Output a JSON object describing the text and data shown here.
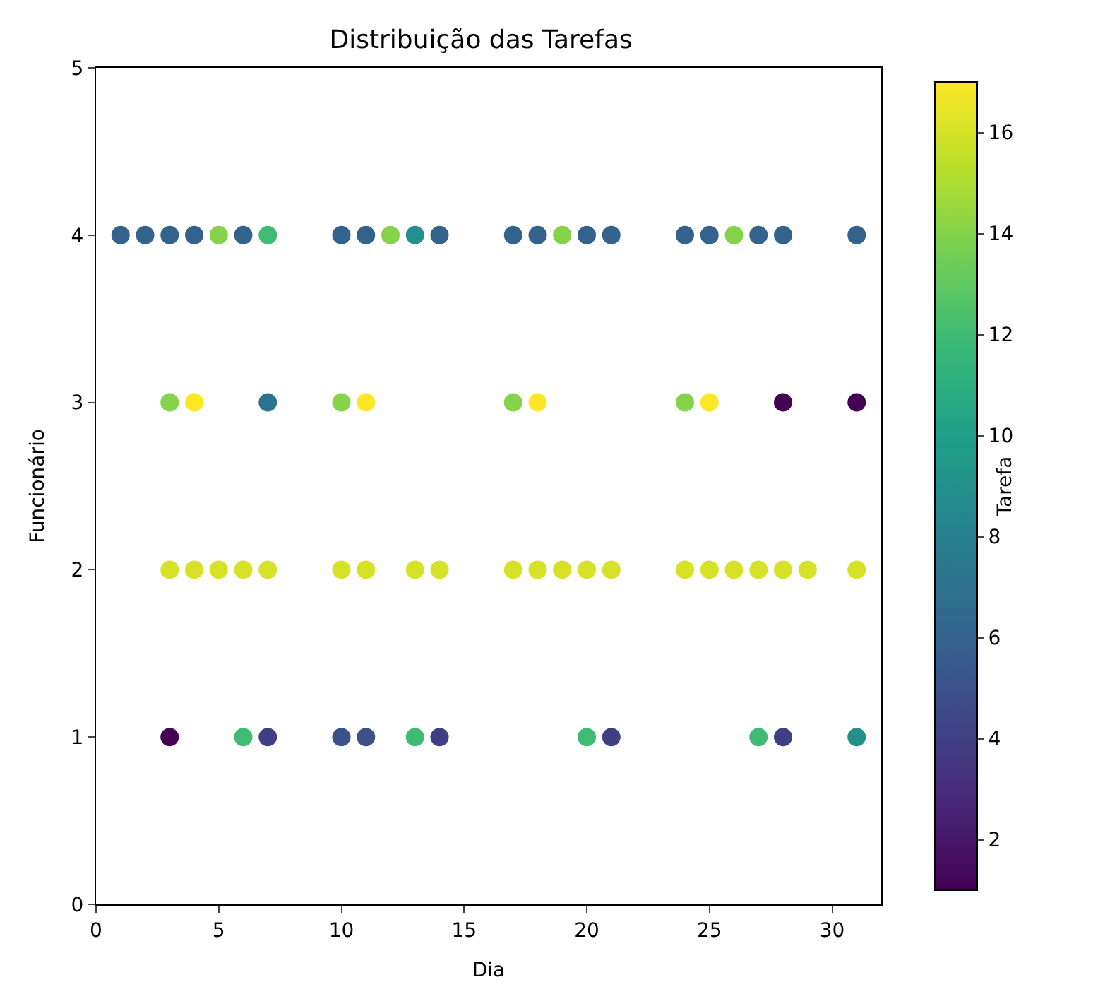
{
  "chart_data": {
    "type": "scatter",
    "title": "Distribuição das Tarefas",
    "xlabel": "Dia",
    "ylabel": "Funcionário",
    "clabel": "Tarefa",
    "x": [
      1,
      2,
      3,
      4,
      5,
      6,
      7,
      10,
      11,
      12,
      13,
      14,
      17,
      18,
      19,
      20,
      21,
      24,
      25,
      26,
      27,
      28,
      31,
      3,
      4,
      7,
      10,
      11,
      17,
      18,
      24,
      25,
      28,
      31,
      3,
      4,
      5,
      6,
      7,
      10,
      11,
      13,
      14,
      17,
      18,
      19,
      20,
      21,
      24,
      25,
      26,
      27,
      28,
      29,
      31,
      3,
      6,
      7,
      10,
      11,
      13,
      14,
      20,
      21,
      27,
      28,
      31
    ],
    "values": [
      4,
      4,
      4,
      4,
      4,
      4,
      4,
      4,
      4,
      4,
      4,
      4,
      4,
      4,
      4,
      4,
      4,
      4,
      4,
      4,
      4,
      4,
      4,
      3,
      3,
      3,
      3,
      3,
      3,
      3,
      3,
      3,
      3,
      3,
      2,
      2,
      2,
      2,
      2,
      2,
      2,
      2,
      2,
      2,
      2,
      2,
      2,
      2,
      2,
      2,
      2,
      2,
      2,
      2,
      2,
      1,
      1,
      1,
      1,
      1,
      1,
      1,
      1,
      1,
      1,
      1,
      1
    ],
    "cvalues": [
      6,
      6,
      6,
      6,
      14,
      6,
      12,
      6,
      6,
      14,
      9,
      6,
      6,
      6,
      14,
      6,
      6,
      6,
      6,
      14,
      6,
      6,
      6,
      14,
      17,
      7,
      14,
      17,
      14,
      17,
      14,
      17,
      1,
      1,
      16,
      16,
      16,
      16,
      16,
      16,
      16,
      16,
      16,
      16,
      16,
      16,
      16,
      16,
      16,
      16,
      16,
      16,
      16,
      16,
      16,
      1,
      12,
      4,
      5,
      5,
      12,
      4,
      12,
      4,
      12,
      4,
      9
    ],
    "clim": [
      1,
      17
    ],
    "cticks": [
      2,
      4,
      6,
      8,
      10,
      12,
      14,
      16
    ],
    "xlim": [
      0,
      32
    ],
    "xticks": [
      0,
      5,
      10,
      15,
      20,
      25,
      30
    ],
    "ylim": [
      0,
      5
    ],
    "yticks": [
      0,
      1,
      2,
      3,
      4,
      5
    ],
    "marker": "circle"
  }
}
